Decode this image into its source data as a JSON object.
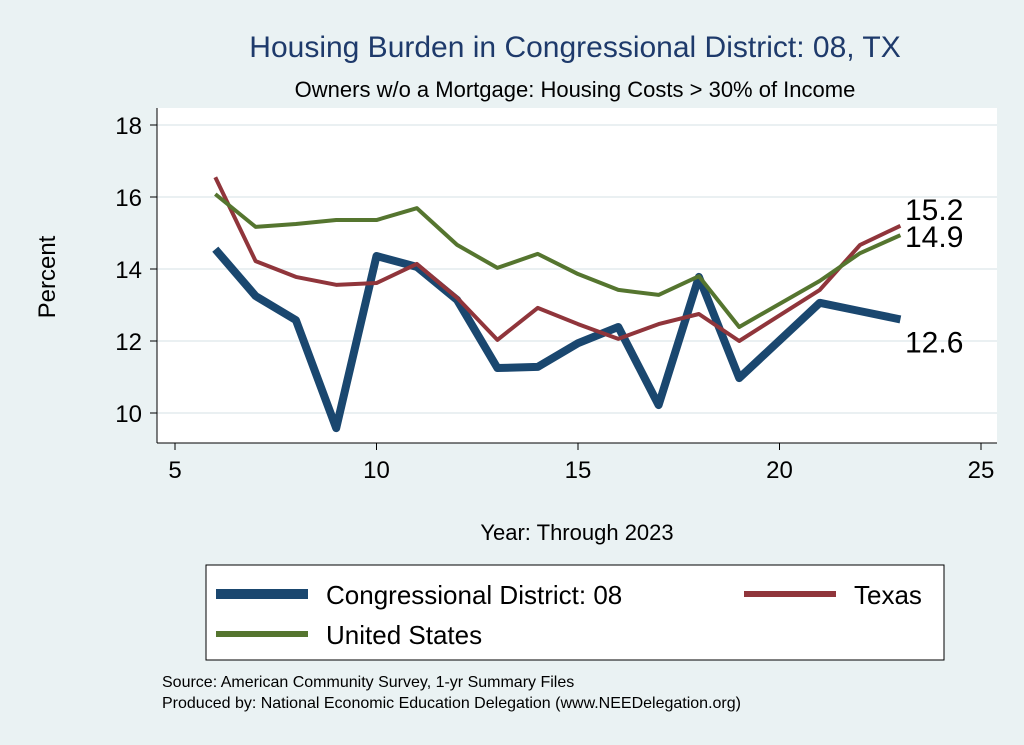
{
  "chart_data": {
    "type": "line",
    "title": "Housing Burden in Congressional District:  08, TX",
    "subtitle": "Owners w/o a Mortgage: Housing Costs > 30% of Income",
    "xlabel": "Year: Through 2023",
    "ylabel": "Percent",
    "xlim": [
      5,
      25
    ],
    "ylim": [
      9.2,
      18.5
    ],
    "xticks": [
      5,
      10,
      15,
      20,
      25
    ],
    "yticks": [
      10,
      12,
      14,
      16,
      18
    ],
    "grid": true,
    "legend_placement": "bottom",
    "series": [
      {
        "name": "Congressional District:  08",
        "color": "#1a476f",
        "width": 8,
        "x": [
          6,
          7,
          8,
          9,
          10,
          11,
          12,
          13,
          14,
          15,
          16,
          17,
          18,
          19,
          21,
          22,
          23
        ],
        "y": [
          14.55,
          13.25,
          12.58,
          9.58,
          14.36,
          14.06,
          13.14,
          11.25,
          11.28,
          11.94,
          12.39,
          10.22,
          13.78,
          10.97,
          13.06,
          12.83,
          12.6
        ],
        "end_label": "12.6"
      },
      {
        "name": "Texas",
        "color": "#90353b",
        "width": 4,
        "x": [
          6,
          7,
          8,
          9,
          10,
          11,
          12,
          13,
          14,
          15,
          16,
          17,
          18,
          19,
          21,
          22,
          23
        ],
        "y": [
          16.55,
          14.22,
          13.78,
          13.56,
          13.61,
          14.14,
          13.2,
          12.03,
          12.92,
          12.47,
          12.06,
          12.47,
          12.75,
          12.0,
          13.42,
          14.67,
          15.2
        ],
        "end_label": "15.2"
      },
      {
        "name": "United States",
        "color": "#55752f",
        "width": 4,
        "x": [
          6,
          7,
          8,
          9,
          10,
          11,
          12,
          13,
          14,
          15,
          16,
          17,
          18,
          19,
          21,
          22,
          23
        ],
        "y": [
          16.08,
          15.17,
          15.25,
          15.36,
          15.36,
          15.69,
          14.67,
          14.03,
          14.42,
          13.86,
          13.42,
          13.28,
          13.8,
          12.39,
          13.67,
          14.44,
          14.94
        ],
        "end_label": "14.9"
      }
    ]
  },
  "notes": [
    "Source: American Community Survey, 1-yr Summary Files",
    "Produced by: National Economic Education Delegation (www.NEEDelegation.org)"
  ]
}
